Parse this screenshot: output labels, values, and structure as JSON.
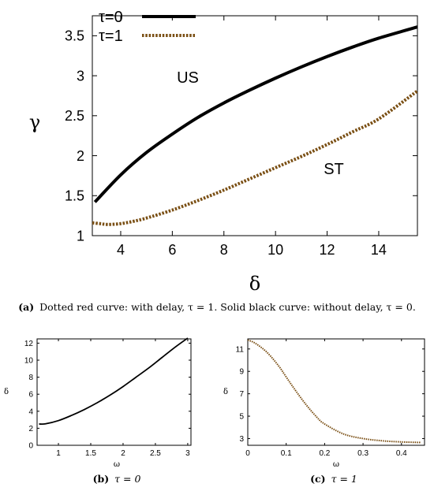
{
  "chart_data": [
    {
      "id": "a",
      "type": "line",
      "xlabel": "δ",
      "ylabel": "γ",
      "xlim": [
        2.9,
        15.5
      ],
      "ylim": [
        1.0,
        3.75
      ],
      "xticks": [
        4,
        6,
        8,
        10,
        12,
        14
      ],
      "yticks": [
        1,
        1.5,
        2,
        2.5,
        3,
        3.5
      ],
      "ytick_labels": [
        "1",
        "1.5",
        "2",
        "2.5",
        "3",
        "3.5"
      ],
      "grid": false,
      "legend_position": "top-left",
      "annotations": [
        {
          "text": "US",
          "x": 6.5,
          "y": 2.97
        },
        {
          "text": "ST",
          "x": 12.1,
          "y": 1.82
        }
      ],
      "series": [
        {
          "name": "τ=0",
          "style": "solid",
          "color": "#000000",
          "x": [
            3,
            4,
            5,
            6,
            7,
            8,
            9,
            10,
            11,
            12,
            13,
            14,
            15.5
          ],
          "y": [
            1.42,
            1.76,
            2.04,
            2.27,
            2.48,
            2.66,
            2.82,
            2.97,
            3.11,
            3.24,
            3.36,
            3.47,
            3.61
          ]
        },
        {
          "name": "τ=1",
          "style": "dotted",
          "color": "#7a4f14",
          "x": [
            2.9,
            3.2,
            3.5,
            4,
            4.5,
            5,
            6,
            7,
            8,
            9,
            10,
            11,
            12,
            13,
            14,
            15.5
          ],
          "y": [
            1.16,
            1.15,
            1.14,
            1.15,
            1.18,
            1.22,
            1.32,
            1.44,
            1.57,
            1.71,
            1.85,
            1.99,
            2.14,
            2.3,
            2.46,
            2.81
          ]
        }
      ]
    },
    {
      "id": "b",
      "type": "line",
      "xlabel": "ω",
      "ylabel": "δ",
      "xlim": [
        0.67,
        3.05
      ],
      "ylim": [
        0,
        12.5
      ],
      "xticks": [
        1,
        1.5,
        2,
        2.5,
        3
      ],
      "yticks": [
        0,
        2,
        4,
        6,
        8,
        10,
        12
      ],
      "grid": false,
      "series": [
        {
          "style": "solid",
          "color": "#000000",
          "x": [
            0.7,
            0.8,
            1.0,
            1.2,
            1.4,
            1.6,
            1.8,
            2.0,
            2.2,
            2.4,
            2.6,
            2.8,
            3.0
          ],
          "y": [
            2.5,
            2.52,
            2.9,
            3.5,
            4.2,
            5.0,
            5.9,
            6.9,
            8.0,
            9.1,
            10.3,
            11.5,
            12.6
          ]
        }
      ]
    },
    {
      "id": "c",
      "type": "line",
      "xlabel": "ω",
      "ylabel": "δ",
      "xlim": [
        0,
        0.46
      ],
      "ylim": [
        2.4,
        11.9
      ],
      "xticks": [
        0,
        0.1,
        0.2,
        0.3,
        0.4
      ],
      "yticks": [
        3,
        5,
        7,
        9,
        11
      ],
      "grid": false,
      "series": [
        {
          "style": "dotted",
          "color": "#7a4f14",
          "x": [
            0,
            0.02,
            0.05,
            0.08,
            0.1,
            0.12,
            0.15,
            0.18,
            0.2,
            0.25,
            0.3,
            0.35,
            0.4,
            0.45
          ],
          "y": [
            11.8,
            11.5,
            10.7,
            9.5,
            8.5,
            7.5,
            6.1,
            4.9,
            4.3,
            3.4,
            3.0,
            2.8,
            2.7,
            2.65
          ]
        }
      ]
    }
  ],
  "captions": {
    "a_prefix": "(a)",
    "a_text": "Dotted red curve: with delay, τ = 1. Solid black curve: without delay, τ = 0.",
    "b_prefix": "(b)",
    "b_text": "τ = 0",
    "c_prefix": "(c)",
    "c_text": "τ = 1"
  }
}
